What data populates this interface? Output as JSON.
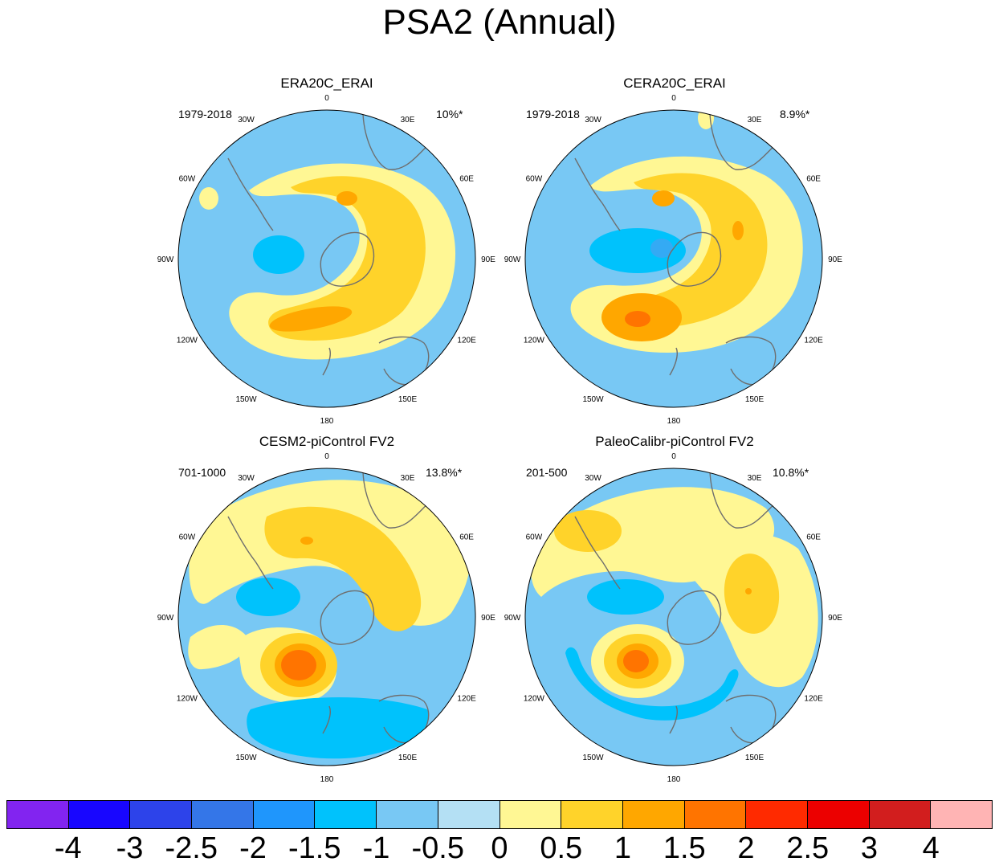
{
  "title": "PSA2 (Annual)",
  "panels": [
    {
      "title": "ERA20C_ERAI",
      "period": "1979-2018",
      "variance": "10%*",
      "lon_labels": [
        "0",
        "30E",
        "60E",
        "90E",
        "120E",
        "150E",
        "180",
        "150W",
        "120W",
        "90W",
        "60W",
        "30W"
      ]
    },
    {
      "title": "CERA20C_ERAI",
      "period": "1979-2018",
      "variance": "8.9%*",
      "lon_labels": [
        "0",
        "30E",
        "60E",
        "90E",
        "120E",
        "150E",
        "180",
        "150W",
        "120W",
        "90W",
        "60W",
        "30W"
      ]
    },
    {
      "title": "CESM2-piControl FV2",
      "period": "701-1000",
      "variance": "13.8%*",
      "lon_labels": [
        "0",
        "30E",
        "60E",
        "90E",
        "120E",
        "150E",
        "180",
        "150W",
        "120W",
        "90W",
        "60W",
        "30W"
      ]
    },
    {
      "title": "PaleoCalibr-piControl FV2",
      "period": "201-500",
      "variance": "10.8%*",
      "lon_labels": [
        "0",
        "30E",
        "60E",
        "90E",
        "120E",
        "150E",
        "180",
        "150W",
        "120W",
        "90W",
        "60W",
        "30W"
      ]
    }
  ],
  "colorbar": {
    "labels": [
      "-4",
      "-3",
      "-2.5",
      "-2",
      "-1.5",
      "-1",
      "-0.5",
      "0",
      "0.5",
      "1",
      "1.5",
      "2",
      "2.5",
      "3",
      "4"
    ],
    "colors": [
      "#8224f0",
      "#1806ff",
      "#2d43ea",
      "#3476e8",
      "#1f96fc",
      "#00c2fc",
      "#78c8f4",
      "#b4e0f4",
      "#fff794",
      "#ffd32a",
      "#ffa700",
      "#ff7400",
      "#ff2a00",
      "#ec0000",
      "#d21e1e",
      "#ffb4b4"
    ]
  }
}
